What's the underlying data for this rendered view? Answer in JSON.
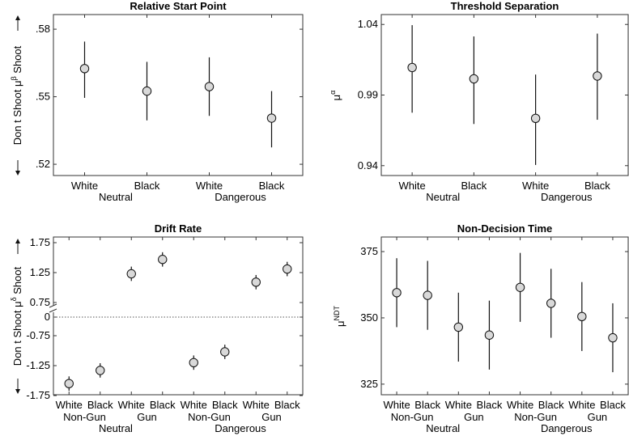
{
  "chart_data": [
    {
      "type": "scatter",
      "title": "Relative Start Point",
      "ylabel_parts": [
        "Don t Shoot",
        "μ",
        "β",
        "Shoot"
      ],
      "yticks": [
        ".52",
        ".55",
        ".58"
      ],
      "ylim": [
        0.515,
        0.5865
      ],
      "categories": [
        "White",
        "Black",
        "White",
        "Black"
      ],
      "groups": [
        "Neutral",
        "Dangerous"
      ],
      "series": [
        {
          "values": [
            0.5625,
            0.5525,
            0.5545,
            0.5405
          ],
          "lower": [
            0.5495,
            0.5395,
            0.5415,
            0.5275
          ],
          "upper": [
            0.5745,
            0.5655,
            0.5675,
            0.5525
          ]
        }
      ]
    },
    {
      "type": "scatter",
      "title": "Threshold Separation",
      "ylabel_parts": [
        "μ",
        "α"
      ],
      "yticks": [
        "0.94",
        "0.99",
        "1.04"
      ],
      "ylim": [
        0.933,
        1.047
      ],
      "categories": [
        "White",
        "Black",
        "White",
        "Black"
      ],
      "groups": [
        "Neutral",
        "Dangerous"
      ],
      "series": [
        {
          "values": [
            1.0095,
            1.0015,
            0.9735,
            1.0035
          ],
          "lower": [
            0.9775,
            0.9695,
            0.9405,
            0.9725
          ],
          "upper": [
            1.0395,
            1.0315,
            1.0045,
            1.0335
          ]
        }
      ]
    },
    {
      "type": "scatter",
      "title": "Drift Rate",
      "ylabel_parts": [
        "Don t Shoot",
        "μ",
        "δ",
        "Shoot"
      ],
      "yticks": [
        "-1.75",
        "-1.25",
        "-0.75",
        "0",
        "0.75",
        "1.25",
        "1.75"
      ],
      "axis_break": "between 0 and 0.75",
      "categories": [
        "White",
        "Black",
        "White",
        "Black",
        "White",
        "Black",
        "White",
        "Black"
      ],
      "subgroups": [
        "Non-Gun",
        "Gun",
        "Non-Gun",
        "Gun"
      ],
      "groups": [
        "Neutral",
        "Dangerous"
      ],
      "series": [
        {
          "values": [
            -1.55,
            -1.33,
            1.23,
            1.47,
            -1.2,
            -1.02,
            1.09,
            1.31
          ],
          "lower": [
            -1.67,
            -1.45,
            1.11,
            1.35,
            -1.32,
            -1.14,
            0.97,
            1.19
          ],
          "upper": [
            -1.43,
            -1.21,
            1.35,
            1.59,
            -1.08,
            -0.9,
            1.21,
            1.43
          ]
        }
      ],
      "reference_line": "dotted at 0"
    },
    {
      "type": "scatter",
      "title": "Non-Decision Time",
      "ylabel_parts": [
        "μ",
        "NDT"
      ],
      "yticks": [
        "325",
        "350",
        "375"
      ],
      "ylim": [
        321,
        380.5
      ],
      "categories": [
        "White",
        "Black",
        "White",
        "Black",
        "White",
        "Black",
        "White",
        "Black"
      ],
      "subgroups": [
        "Non-Gun",
        "Gun",
        "Non-Gun",
        "Gun"
      ],
      "groups": [
        "Neutral",
        "Dangerous"
      ],
      "series": [
        {
          "values": [
            359.5,
            358.5,
            346.5,
            343.5,
            361.5,
            355.5,
            350.5,
            342.5
          ],
          "lower": [
            346.5,
            345.5,
            333.5,
            330.5,
            348.5,
            342.5,
            337.5,
            329.5
          ],
          "upper": [
            372.5,
            371.5,
            359.5,
            356.5,
            374.5,
            368.5,
            363.5,
            355.5
          ]
        }
      ]
    }
  ]
}
